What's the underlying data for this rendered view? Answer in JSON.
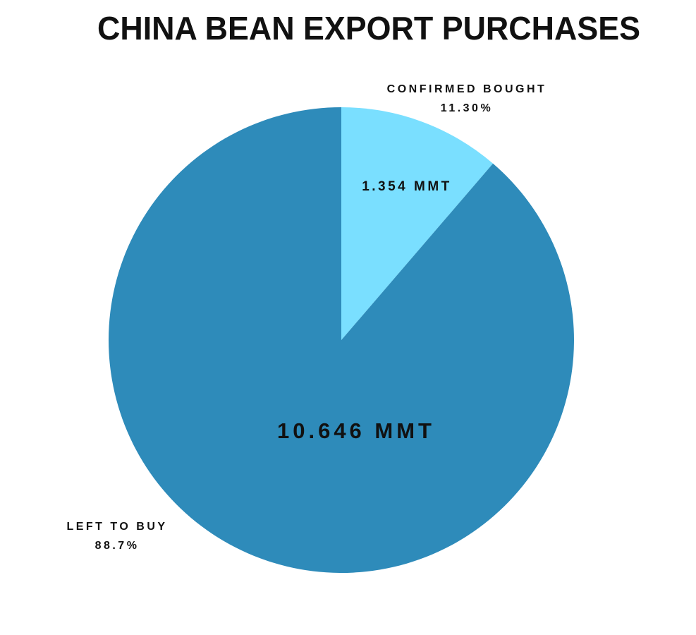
{
  "chart_data": {
    "type": "pie",
    "title": "CHINA BEAN EXPORT PURCHASES",
    "categories": [
      "CONFIRMED BOUGHT",
      "LEFT TO BUY"
    ],
    "values": [
      11.3,
      88.7
    ],
    "value_labels": [
      "11.30%",
      "88.7%"
    ],
    "slice_labels": [
      "1.354 MMT",
      "10.646 MMT"
    ],
    "colors": [
      "#7adfff",
      "#2e8bba"
    ]
  }
}
